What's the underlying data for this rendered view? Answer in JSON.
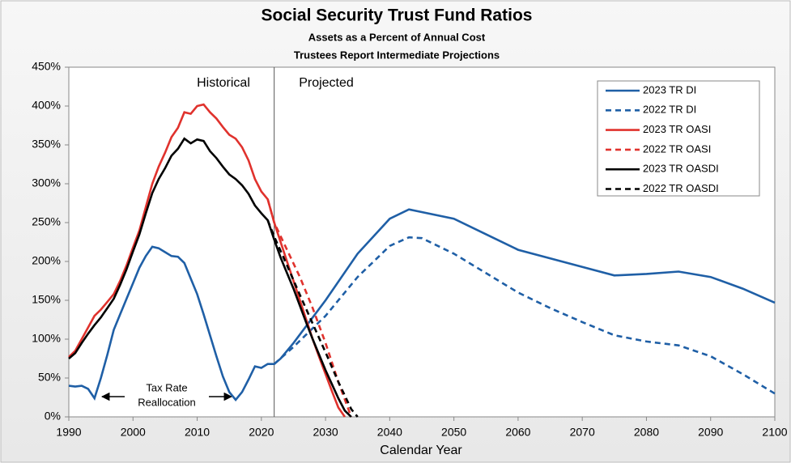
{
  "chart_data": {
    "type": "line",
    "title": "Social Security Trust Fund Ratios",
    "subtitle": [
      "Assets as a Percent of Annual Cost",
      "Trustees Report Intermediate Projections"
    ],
    "xlabel": "Calendar Year",
    "annotations": {
      "historical": "Historical",
      "projected": "Projected",
      "tax_rate": [
        "Tax Rate",
        "Reallocation"
      ]
    },
    "projection_start": 2022,
    "xlim": [
      1990,
      2100
    ],
    "xticks": [
      1990,
      2000,
      2010,
      2020,
      2030,
      2040,
      2050,
      2060,
      2070,
      2080,
      2090,
      2100
    ],
    "ylim": [
      0,
      450
    ],
    "yticks": [
      {
        "value": 0,
        "label": "0%"
      },
      {
        "value": 50,
        "label": "50%"
      },
      {
        "value": 100,
        "label": "100%"
      },
      {
        "value": 150,
        "label": "150%"
      },
      {
        "value": 200,
        "label": "200%"
      },
      {
        "value": 250,
        "label": "250%"
      },
      {
        "value": 300,
        "label": "300%"
      },
      {
        "value": 350,
        "label": "350%"
      },
      {
        "value": 400,
        "label": "400%"
      },
      {
        "value": 450,
        "label": "450%"
      }
    ],
    "legend": "upper right",
    "series": [
      {
        "name": "2023 TR DI",
        "color": "#1f5fa6",
        "dashed": false,
        "x": [
          1990,
          1991,
          1992,
          1993,
          1994,
          1995,
          1996,
          1997,
          1998,
          1999,
          2000,
          2001,
          2002,
          2003,
          2004,
          2005,
          2006,
          2007,
          2008,
          2009,
          2010,
          2011,
          2012,
          2013,
          2014,
          2015,
          2016,
          2017,
          2018,
          2019,
          2020,
          2021,
          2022,
          2023,
          2024,
          2025,
          2030,
          2035,
          2040,
          2043,
          2050,
          2055,
          2060,
          2070,
          2075,
          2080,
          2085,
          2090,
          2095,
          2100
        ],
        "values": [
          40,
          39,
          40,
          36,
          24,
          50,
          80,
          112,
          132,
          152,
          172,
          192,
          207,
          219,
          217,
          212,
          207,
          206,
          198,
          178,
          158,
          132,
          105,
          78,
          52,
          32,
          22,
          32,
          48,
          65,
          63,
          68,
          68,
          75,
          85,
          95,
          150,
          210,
          255,
          267,
          255,
          235,
          215,
          193,
          182,
          184,
          187,
          180,
          165,
          147
        ]
      },
      {
        "name": "2022 TR DI",
        "color": "#1f5fa6",
        "dashed": true,
        "x": [
          2022,
          2025,
          2030,
          2035,
          2040,
          2043,
          2045,
          2050,
          2055,
          2060,
          2065,
          2070,
          2075,
          2080,
          2085,
          2090,
          2095,
          2100
        ],
        "values": [
          68,
          90,
          130,
          180,
          220,
          231,
          230,
          210,
          185,
          160,
          140,
          122,
          105,
          97,
          92,
          78,
          55,
          30
        ]
      },
      {
        "name": "2023 TR OASI",
        "color": "#e0322d",
        "dashed": false,
        "x": [
          1990,
          1991,
          1992,
          1993,
          1994,
          1995,
          1996,
          1997,
          1998,
          1999,
          2000,
          2001,
          2002,
          2003,
          2004,
          2005,
          2006,
          2007,
          2008,
          2009,
          2010,
          2011,
          2012,
          2013,
          2014,
          2015,
          2016,
          2017,
          2018,
          2019,
          2020,
          2021,
          2022,
          2023,
          2024,
          2025,
          2026,
          2027,
          2028,
          2029,
          2030,
          2031,
          2032,
          2033
        ],
        "values": [
          77,
          85,
          100,
          115,
          130,
          138,
          148,
          158,
          175,
          195,
          218,
          240,
          270,
          300,
          322,
          340,
          360,
          372,
          392,
          390,
          400,
          402,
          392,
          384,
          373,
          363,
          358,
          347,
          330,
          306,
          290,
          280,
          250,
          225,
          200,
          175,
          150,
          125,
          100,
          77,
          55,
          33,
          12,
          0
        ]
      },
      {
        "name": "2022 TR OASI",
        "color": "#e0322d",
        "dashed": true,
        "x": [
          2021,
          2022,
          2024,
          2026,
          2028,
          2030,
          2032,
          2034
        ],
        "values": [
          280,
          250,
          215,
          180,
          140,
          95,
          45,
          0
        ]
      },
      {
        "name": "2023 TR OASDI",
        "color": "#000000",
        "dashed": false,
        "x": [
          1990,
          1991,
          1992,
          1993,
          1994,
          1995,
          1996,
          1997,
          1998,
          1999,
          2000,
          2001,
          2002,
          2003,
          2004,
          2005,
          2006,
          2007,
          2008,
          2009,
          2010,
          2011,
          2012,
          2013,
          2014,
          2015,
          2016,
          2017,
          2018,
          2019,
          2020,
          2021,
          2022,
          2023,
          2024,
          2025,
          2026,
          2027,
          2028,
          2029,
          2030,
          2031,
          2032,
          2033,
          2034
        ],
        "values": [
          75,
          82,
          95,
          107,
          118,
          128,
          140,
          152,
          170,
          190,
          213,
          235,
          262,
          288,
          306,
          320,
          336,
          345,
          358,
          352,
          357,
          355,
          342,
          333,
          322,
          312,
          306,
          298,
          287,
          272,
          262,
          253,
          228,
          205,
          185,
          165,
          143,
          121,
          100,
          80,
          60,
          42,
          24,
          8,
          0
        ]
      },
      {
        "name": "2022 TR OASDI",
        "color": "#000000",
        "dashed": true,
        "x": [
          2021,
          2022,
          2024,
          2026,
          2028,
          2030,
          2032,
          2034,
          2035
        ],
        "values": [
          253,
          232,
          195,
          157,
          120,
          83,
          45,
          10,
          0
        ]
      }
    ]
  }
}
